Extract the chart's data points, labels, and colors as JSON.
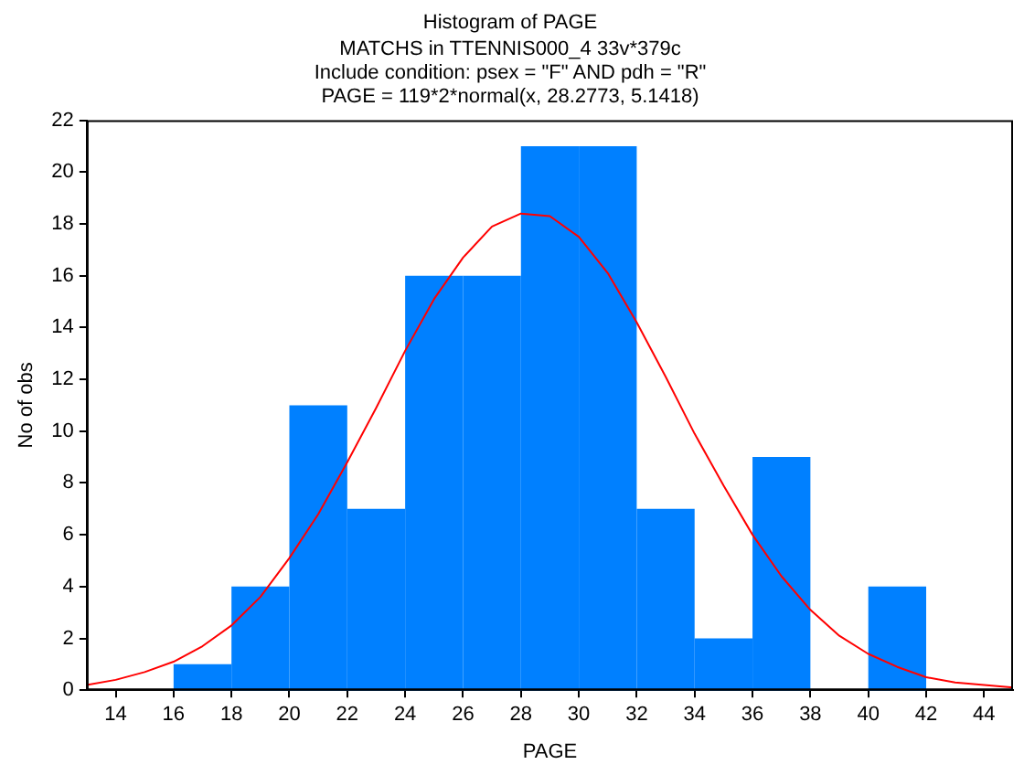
{
  "chart_data": {
    "type": "histogram",
    "title": "Histogram of PAGE",
    "subtitle": "MATCHS in TTENNIS000_4 33v*379c\nInclude condition: psex = \"F\" AND pdh = \"R\"\nPAGE = 119*2*normal(x, 28.2773, 5.1418)",
    "xlabel": "PAGE",
    "ylabel": "No of obs",
    "bins": [
      16,
      18,
      20,
      22,
      24,
      26,
      28,
      30,
      32,
      34,
      36,
      38,
      40,
      42
    ],
    "values": [
      1,
      4,
      11,
      7,
      16,
      16,
      21,
      21,
      7,
      2,
      9,
      0,
      4
    ],
    "color": "#0080ff",
    "series": [
      {
        "type": "line",
        "color": "#ff0000",
        "x": [
          13,
          14,
          15,
          16,
          17,
          18,
          19,
          20,
          21,
          22,
          23,
          24,
          25,
          26,
          27,
          28,
          29,
          30,
          31,
          32,
          33,
          34,
          35,
          36,
          37,
          38,
          39,
          40,
          41,
          42,
          43,
          44,
          45
        ],
        "values": [
          0.2,
          0.4,
          0.7,
          1.1,
          1.7,
          2.5,
          3.6,
          5.1,
          6.8,
          8.8,
          10.9,
          13.1,
          15.1,
          16.7,
          17.9,
          18.4,
          18.3,
          17.5,
          16.1,
          14.2,
          12.1,
          9.9,
          7.9,
          6.0,
          4.4,
          3.1,
          2.1,
          1.4,
          0.9,
          0.5,
          0.3,
          0.2,
          0.1
        ]
      }
    ],
    "xlim": [
      13,
      45
    ],
    "xticks": [
      14,
      16,
      18,
      20,
      22,
      24,
      26,
      28,
      30,
      32,
      34,
      36,
      38,
      40,
      42,
      44
    ],
    "ylim": [
      0,
      22
    ],
    "yticks": [
      0,
      2,
      4,
      6,
      8,
      10,
      12,
      14,
      16,
      18,
      20,
      22
    ],
    "marker": "none"
  }
}
